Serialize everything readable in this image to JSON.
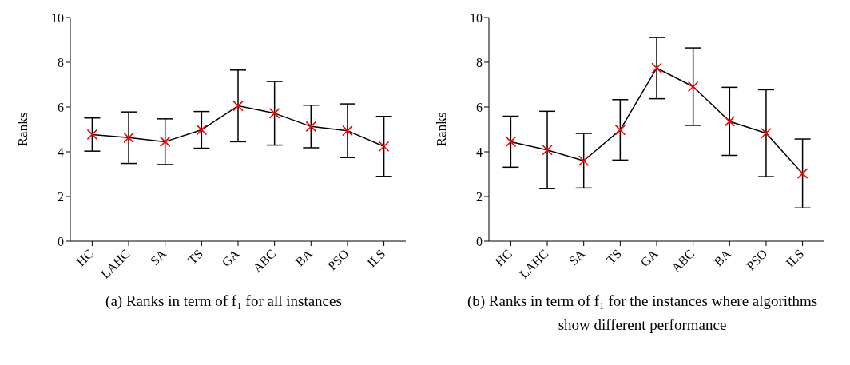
{
  "chart_data": [
    {
      "type": "line",
      "title": "(a) Ranks in term of f₁ for all instances",
      "ylabel": "Ranks",
      "categories": [
        "HC",
        "LAHC",
        "SA",
        "TS",
        "GA",
        "ABC",
        "BA",
        "PSO",
        "ILS"
      ],
      "series": [
        {
          "color": "#ff0000",
          "values": [
            4.77,
            4.63,
            4.45,
            4.98,
            6.05,
            5.72,
            5.13,
            4.94,
            4.24
          ],
          "errors": [
            0.74,
            1.15,
            1.02,
            0.82,
            1.6,
            1.42,
            0.95,
            1.2,
            1.34
          ]
        }
      ],
      "ylim": [
        0,
        10
      ],
      "yticks": [
        0,
        2,
        4,
        6,
        8,
        10
      ],
      "marker": "cross",
      "line_style": "solid",
      "grid": false
    },
    {
      "type": "line",
      "title": "(b) Ranks in term of f₁ for the instances where algorithms show different performance",
      "ylabel": "Ranks",
      "categories": [
        "HC",
        "LAHC",
        "SA",
        "TS",
        "GA",
        "ABC",
        "BA",
        "PSO",
        "ILS"
      ],
      "series": [
        {
          "color": "#ff0000",
          "values": [
            4.45,
            4.08,
            3.6,
            4.98,
            7.74,
            6.91,
            5.36,
            4.83,
            3.03
          ],
          "errors": [
            1.14,
            1.73,
            1.22,
            1.35,
            1.37,
            1.73,
            1.52,
            1.94,
            1.54
          ]
        }
      ],
      "ylim": [
        0,
        10
      ],
      "yticks": [
        0,
        2,
        4,
        6,
        8,
        10
      ],
      "marker": "cross",
      "line_style": "solid",
      "grid": false
    }
  ]
}
